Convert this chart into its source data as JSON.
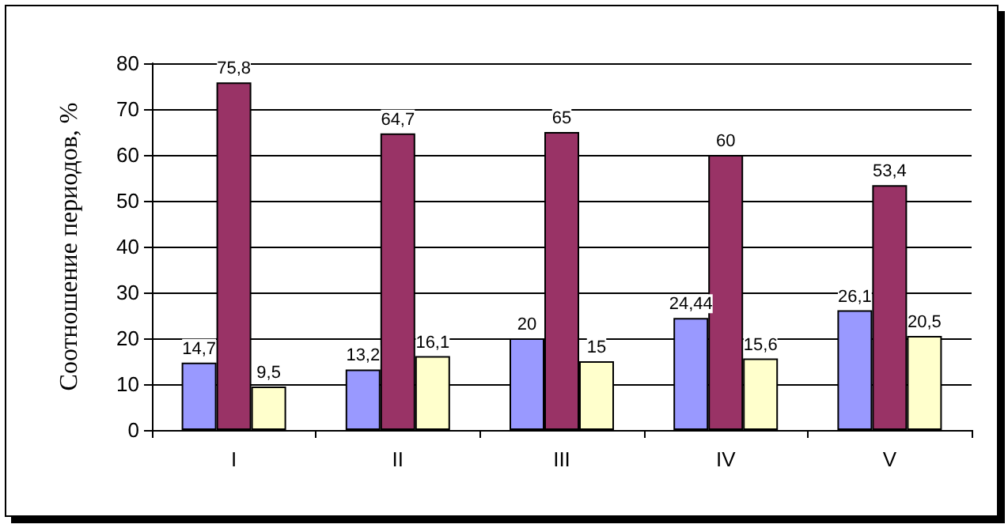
{
  "chart_data": {
    "type": "bar",
    "ylabel": "Соотношение периодов, %",
    "categories": [
      "I",
      "II",
      "III",
      "IV",
      "V"
    ],
    "series": [
      {
        "color": "#9999ff",
        "values": [
          14.7,
          13.2,
          20,
          24.44,
          26.1
        ],
        "value_labels": [
          "14,7",
          "13,2",
          "20",
          "24,44",
          "26,1"
        ]
      },
      {
        "color": "#993366",
        "values": [
          75.8,
          64.7,
          65,
          60,
          53.4
        ],
        "value_labels": [
          "75,8",
          "64,7",
          "65",
          "60",
          "53,4"
        ]
      },
      {
        "color": "#ffffcc",
        "values": [
          9.5,
          16.1,
          15,
          15.6,
          20.5
        ],
        "value_labels": [
          "9,5",
          "16,1",
          "15",
          "15,6",
          "20,5"
        ]
      }
    ],
    "ylim": [
      0,
      80
    ],
    "yticks": [
      0,
      10,
      20,
      30,
      40,
      50,
      60,
      70,
      80
    ],
    "grid": "y"
  }
}
